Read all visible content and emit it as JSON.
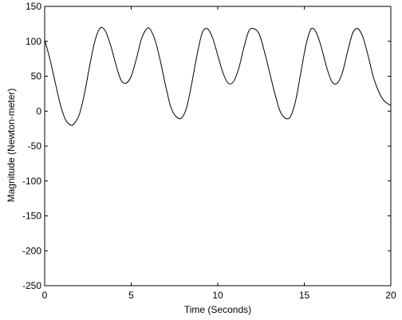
{
  "chart_data": {
    "type": "line",
    "title": "",
    "xlabel": "Time (Seconds)",
    "ylabel": "Magnitude (Newton-meter)",
    "xlim": [
      0,
      20
    ],
    "ylim": [
      -250,
      150
    ],
    "xticks": [
      0,
      5,
      10,
      15,
      20
    ],
    "yticks": [
      -250,
      -200,
      -150,
      -100,
      -50,
      0,
      50,
      100,
      150
    ],
    "grid": false,
    "legend": "none",
    "line_color": "#000000",
    "series": [
      {
        "x": [
          0,
          0.3,
          0.6,
          0.9,
          1.2,
          1.5,
          1.7,
          2.0,
          2.3,
          2.6,
          2.9,
          3.2,
          3.5,
          3.8,
          4.1,
          4.4,
          4.7,
          5.0,
          5.3,
          5.6,
          5.9,
          6.1,
          6.4,
          6.7,
          7.0,
          7.3,
          7.6,
          7.9,
          8.2,
          8.5,
          8.8,
          9.1,
          9.4,
          9.7,
          10.0,
          10.3,
          10.6,
          10.9,
          11.2,
          11.5,
          11.8,
          12.1,
          12.4,
          12.7,
          13.0,
          13.3,
          13.6,
          13.9,
          14.2,
          14.5,
          14.8,
          15.1,
          15.4,
          15.7,
          16.0,
          16.3,
          16.6,
          16.9,
          17.2,
          17.5,
          17.8,
          18.1,
          18.4,
          18.7,
          19.0,
          19.3,
          19.6,
          20.0
        ],
        "y": [
          102,
          75,
          42,
          10,
          -12,
          -20,
          -18,
          -5,
          25,
          65,
          100,
          119,
          115,
          95,
          68,
          45,
          40,
          50,
          75,
          104,
          118,
          117,
          100,
          70,
          35,
          5,
          -8,
          -10,
          5,
          40,
          80,
          112,
          118,
          105,
          80,
          55,
          40,
          42,
          60,
          90,
          115,
          118,
          110,
          85,
          55,
          25,
          0,
          -10,
          -8,
          15,
          55,
          95,
          118,
          112,
          90,
          62,
          42,
          40,
          55,
          85,
          112,
          118,
          105,
          78,
          48,
          28,
          15,
          8
        ]
      }
    ]
  }
}
